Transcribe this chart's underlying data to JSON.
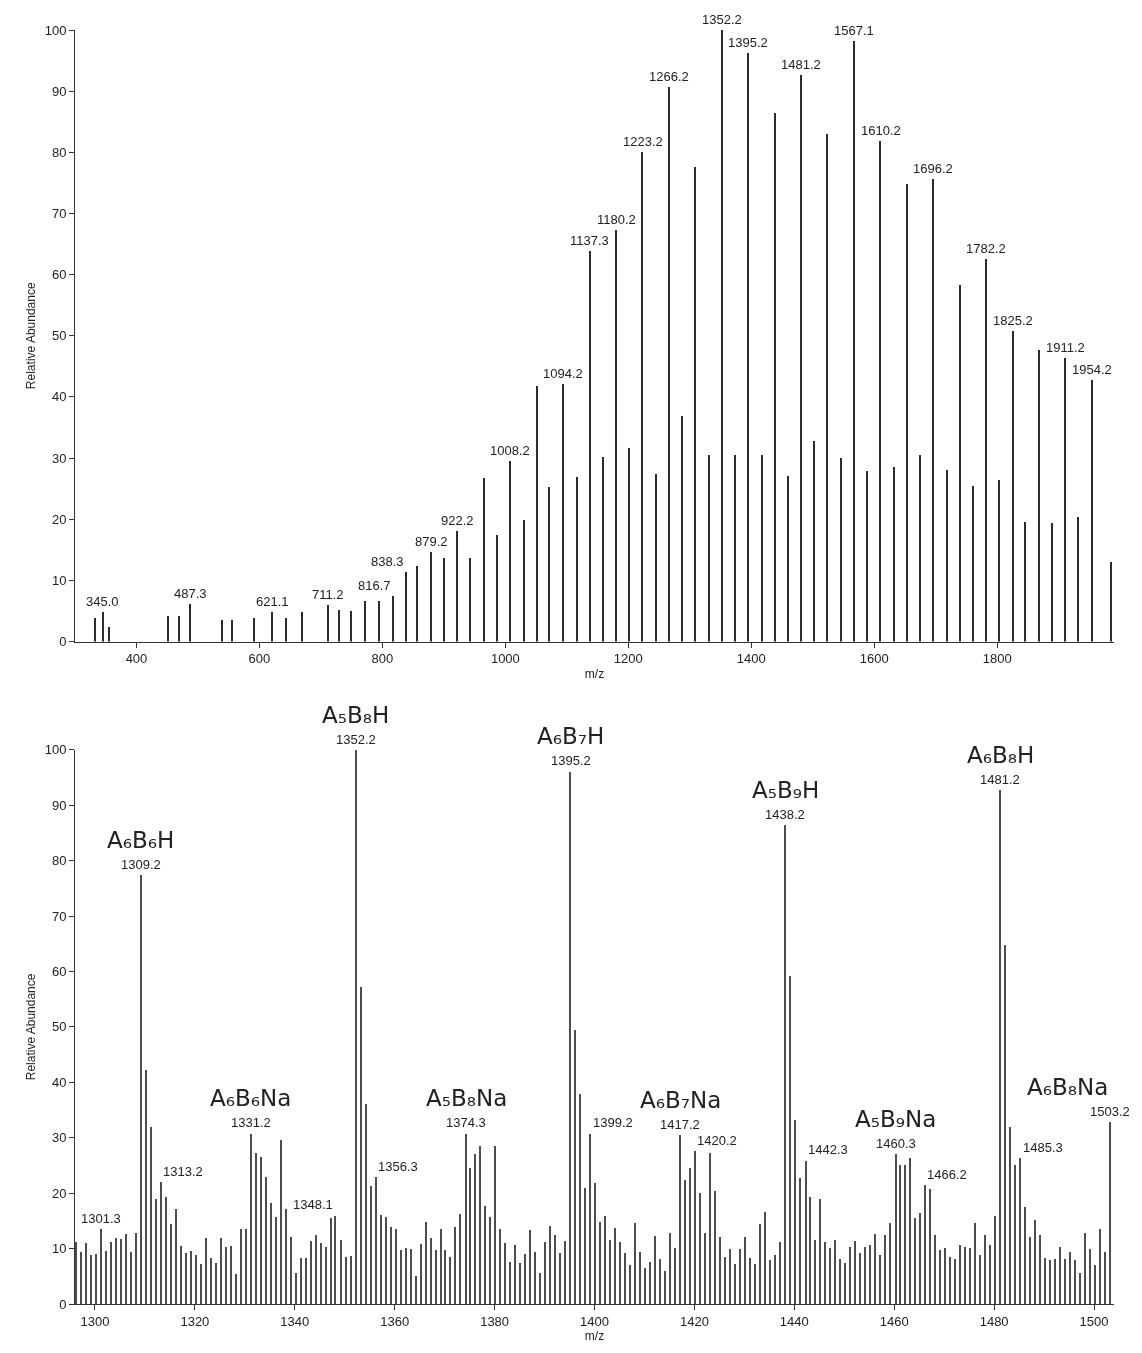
{
  "chart_data": [
    {
      "type": "bar",
      "xlabel": "m/z",
      "ylabel": "Relative Abundance",
      "color": "#2b2b2b",
      "xlim": [
        300,
        1990
      ],
      "ylim": [
        0,
        100
      ],
      "xticks": [
        400,
        600,
        800,
        1000,
        1200,
        1400,
        1600,
        1800
      ],
      "yticks": [
        0,
        10,
        20,
        30,
        40,
        50,
        60,
        70,
        80,
        90,
        100
      ],
      "x": [
        332,
        345.0,
        355,
        452,
        470,
        487.3,
        540,
        555,
        592,
        621.1,
        643,
        669,
        711.2,
        729,
        749,
        772,
        794,
        816.7,
        838.3,
        857,
        879.2,
        901,
        922.2,
        943,
        965,
        986,
        1008.2,
        1030,
        1051.2,
        1071,
        1094.2,
        1116,
        1137.3,
        1159,
        1180.2,
        1202,
        1223.2,
        1245,
        1266.2,
        1288,
        1309.2,
        1331,
        1352.2,
        1374,
        1395.2,
        1417,
        1438.2,
        1460,
        1481.2,
        1502,
        1524.2,
        1546,
        1567.1,
        1589,
        1610.2,
        1632,
        1653.2,
        1674,
        1696.2,
        1719,
        1739.2,
        1761,
        1782.2,
        1803,
        1825.2,
        1846,
        1868.2,
        1889,
        1911.2,
        1932,
        1954.2,
        1985
      ],
      "values": [
        3.8,
        4.8,
        2.3,
        4.2,
        4.2,
        6.1,
        3.6,
        3.5,
        3.9,
        4.8,
        3.8,
        4.9,
        5.9,
        5.2,
        5,
        6.7,
        6.7,
        7.5,
        11.4,
        12.4,
        14.6,
        13.6,
        18.1,
        13.6,
        26.8,
        17.5,
        29.5,
        19.9,
        41.8,
        25.2,
        42.1,
        26.9,
        63.8,
        30.2,
        67.3,
        31.6,
        80,
        27.4,
        90.6,
        36.9,
        77.6,
        30.5,
        100,
        30.5,
        96.2,
        30.5,
        86.5,
        27.1,
        92.6,
        32.8,
        83,
        30,
        98.2,
        27.9,
        81.9,
        28.6,
        74.8,
        30.5,
        75.7,
        28.1,
        58.3,
        25.4,
        62.6,
        26.4,
        50.7,
        19.6,
        47.6,
        19.4,
        46.3,
        20.3,
        42.8,
        13
      ],
      "annotations": [
        {
          "text": "345.0",
          "x": 345.0,
          "y": 4.8
        },
        {
          "text": "487.3",
          "x": 487.3,
          "y": 6.1
        },
        {
          "text": "621.1",
          "x": 621.1,
          "y": 4.8
        },
        {
          "text": "711.2",
          "x": 711.2,
          "y": 5.9
        },
        {
          "text": "816.7",
          "x": 816.7,
          "y": 7.5
        },
        {
          "text": "838.3",
          "x": 838.3,
          "y": 11.4
        },
        {
          "text": "879.2",
          "x": 879.2,
          "y": 14.6
        },
        {
          "text": "922.2",
          "x": 922.2,
          "y": 18.1
        },
        {
          "text": "1008.2",
          "x": 1008.2,
          "y": 29.5
        },
        {
          "text": "1094.2",
          "x": 1094.2,
          "y": 42.1
        },
        {
          "text": "1137.3",
          "x": 1137.3,
          "y": 63.8
        },
        {
          "text": "1180.2",
          "x": 1180.2,
          "y": 67.3
        },
        {
          "text": "1223.2",
          "x": 1223.2,
          "y": 80
        },
        {
          "text": "1266.2",
          "x": 1266.2,
          "y": 90.6
        },
        {
          "text": "1352.2",
          "x": 1352.2,
          "y": 100
        },
        {
          "text": "1395.2",
          "x": 1395.2,
          "y": 96.2
        },
        {
          "text": "1481.2",
          "x": 1481.2,
          "y": 92.6
        },
        {
          "text": "1567.1",
          "x": 1567.1,
          "y": 98.2
        },
        {
          "text": "1610.2",
          "x": 1610.2,
          "y": 81.9
        },
        {
          "text": "1696.2",
          "x": 1696.2,
          "y": 75.7
        },
        {
          "text": "1782.2",
          "x": 1782.2,
          "y": 62.6
        },
        {
          "text": "1825.2",
          "x": 1825.2,
          "y": 50.7
        },
        {
          "text": "1911.2",
          "x": 1911.2,
          "y": 46.3
        },
        {
          "text": "1954.2",
          "x": 1954.2,
          "y": 42.8
        }
      ]
    },
    {
      "type": "bar",
      "xlabel": "m/z",
      "ylabel": "Relative Abundance",
      "color": "#4d4d4d",
      "xlim": [
        1296,
        1504
      ],
      "ylim": [
        0,
        100
      ],
      "xticks": [
        1300,
        1320,
        1340,
        1360,
        1380,
        1400,
        1420,
        1440,
        1460,
        1480,
        1500
      ],
      "yticks": [
        0,
        10,
        20,
        30,
        40,
        50,
        60,
        70,
        80,
        90,
        100
      ],
      "x": [
        1296.2,
        1297.2,
        1298.2,
        1299.2,
        1300.2,
        1301.3,
        1302.2,
        1303.2,
        1304.2,
        1305.2,
        1306.2,
        1307.2,
        1308.2,
        1309.2,
        1310.2,
        1311.2,
        1312.2,
        1313.2,
        1314.2,
        1315.2,
        1316.2,
        1317.2,
        1318.2,
        1319.2,
        1320.2,
        1321.2,
        1322.2,
        1323.2,
        1324.2,
        1325.2,
        1326.2,
        1327.2,
        1328.2,
        1329.2,
        1330.2,
        1331.2,
        1332.2,
        1333.2,
        1334.2,
        1335.2,
        1336.2,
        1337.2,
        1338.2,
        1339.2,
        1340.2,
        1341.2,
        1342.2,
        1343.2,
        1344.2,
        1345.2,
        1346.2,
        1347.2,
        1348.1,
        1349.2,
        1350.2,
        1351.2,
        1352.2,
        1353.2,
        1354.2,
        1355.2,
        1356.3,
        1357.2,
        1358.2,
        1359.2,
        1360.2,
        1361.2,
        1362.2,
        1363.2,
        1364.2,
        1365.2,
        1366.2,
        1367.2,
        1368.2,
        1369.2,
        1370.2,
        1371.2,
        1372.2,
        1373.2,
        1374.3,
        1375.2,
        1376.2,
        1377.2,
        1378.2,
        1379.2,
        1380.2,
        1381.2,
        1382.2,
        1383.2,
        1384.2,
        1385.2,
        1386.2,
        1387.2,
        1388.2,
        1389.2,
        1390.2,
        1391.2,
        1392.2,
        1393.2,
        1394.2,
        1395.2,
        1396.2,
        1397.2,
        1398.2,
        1399.2,
        1400.2,
        1401.2,
        1402.2,
        1403.2,
        1404.2,
        1405.2,
        1406.2,
        1407.2,
        1408.2,
        1409.2,
        1410.2,
        1411.2,
        1412.2,
        1413.2,
        1414.2,
        1415.2,
        1416.2,
        1417.2,
        1418.2,
        1419.2,
        1420.2,
        1421.2,
        1422.2,
        1423.2,
        1424.2,
        1425.2,
        1426.2,
        1427.2,
        1428.2,
        1429.2,
        1430.2,
        1431.2,
        1432.2,
        1433.2,
        1434.2,
        1435.2,
        1436.2,
        1437.2,
        1438.2,
        1439.2,
        1440.2,
        1441.2,
        1442.3,
        1443.2,
        1444.2,
        1445.2,
        1446.2,
        1447.2,
        1448.2,
        1449.2,
        1450.2,
        1451.2,
        1452.2,
        1453.2,
        1454.2,
        1455.2,
        1456.2,
        1457.2,
        1458.2,
        1459.2,
        1460.3,
        1461.2,
        1462.2,
        1463.2,
        1464.2,
        1465.2,
        1466.2,
        1467.2,
        1468.2,
        1469.2,
        1470.2,
        1471.2,
        1472.2,
        1473.2,
        1474.2,
        1475.2,
        1476.2,
        1477.2,
        1478.2,
        1479.2,
        1480.2,
        1481.2,
        1482.2,
        1483.2,
        1484.2,
        1485.3,
        1486.2,
        1487.2,
        1488.2,
        1489.2,
        1490.2,
        1491.2,
        1492.2,
        1493.2,
        1494.2,
        1495.2,
        1496.2,
        1497.2,
        1498.2,
        1499.2,
        1500.2,
        1501.2,
        1502.2,
        1503.2
      ],
      "values": [
        11.3,
        9.5,
        11,
        8.8,
        9.1,
        13.5,
        9.6,
        11.3,
        12,
        11.8,
        12.6,
        9.5,
        12.8,
        77.5,
        42.3,
        32,
        18.9,
        22,
        19.4,
        14.5,
        17.1,
        10.5,
        9.2,
        9.6,
        8.9,
        7.2,
        11.9,
        8.4,
        7.5,
        11.9,
        10.4,
        10.5,
        5.5,
        13.5,
        13.6,
        30.8,
        27.2,
        26.5,
        22.9,
        18.2,
        15.8,
        29.6,
        17.2,
        12.2,
        5.6,
        8.3,
        8.3,
        11.4,
        12.4,
        11,
        10.4,
        15.6,
        16,
        11.6,
        8.6,
        8.7,
        100,
        57.2,
        36.1,
        21.4,
        22.9,
        16.1,
        15.7,
        14,
        13.5,
        9.7,
        10.1,
        9.9,
        5.1,
        10.8,
        14.8,
        11.9,
        9.7,
        13.6,
        9.8,
        8.6,
        13.9,
        16.3,
        30.8,
        24.6,
        27.1,
        28.6,
        17.7,
        15.7,
        28.6,
        13.6,
        11,
        7.6,
        10.7,
        7.5,
        9.1,
        13.3,
        9.4,
        5.7,
        11.3,
        14.2,
        12.5,
        9.2,
        11.4,
        96.1,
        49.4,
        37.9,
        20.9,
        30.8,
        21.9,
        14.8,
        16,
        11.5,
        13.8,
        11.2,
        9.2,
        7.1,
        14.7,
        9.4,
        6.5,
        7.6,
        12.3,
        8.2,
        5.9,
        12.9,
        10.1,
        30.5,
        22.4,
        24.5,
        27.6,
        20.1,
        12.8,
        27.2,
        20.4,
        12.1,
        8.5,
        9.9,
        7.3,
        9.9,
        12.2,
        8.4,
        7.3,
        14.5,
        16.7,
        7.9,
        8.9,
        11.3,
        86.5,
        59.2,
        33.3,
        22.7,
        25.9,
        19.3,
        11.6,
        18.9,
        11.3,
        10.1,
        11.5,
        8.2,
        7.4,
        10.3,
        11.4,
        9.2,
        10.4,
        10.7,
        12.7,
        8.9,
        12.5,
        14.7,
        27.1,
        25.1,
        25.1,
        26.3,
        15.6,
        16.5,
        21.5,
        20.7,
        12.4,
        9.7,
        10.1,
        8.6,
        8.2,
        10.7,
        10.3,
        10.1,
        14.7,
        8.8,
        12.4,
        10.7,
        15.9,
        92.8,
        64.9,
        32,
        25.2,
        26.3,
        17.5,
        12.1,
        15.2,
        12.4,
        8.4,
        7.9,
        8.2,
        10.4,
        8.2,
        9.4,
        8,
        5.6,
        12.8,
        9.9,
        7,
        13.5,
        9.4,
        32.8
      ],
      "annotations": [
        {
          "text": "1301.3",
          "x": 1301.3,
          "y": 13.5
        },
        {
          "text": "1309.2",
          "x": 1309.2,
          "y": 77.5
        },
        {
          "text": "1313.2",
          "x": 1313.2,
          "y": 22
        },
        {
          "text": "1331.2",
          "x": 1331.2,
          "y": 30.8
        },
        {
          "text": "1348.1",
          "x": 1348.1,
          "y": 16
        },
        {
          "text": "1352.2",
          "x": 1352.2,
          "y": 100
        },
        {
          "text": "1356.3",
          "x": 1356.3,
          "y": 22.9
        },
        {
          "text": "1374.3",
          "x": 1374.3,
          "y": 30.8
        },
        {
          "text": "1395.2",
          "x": 1395.2,
          "y": 96.1
        },
        {
          "text": "1399.2",
          "x": 1399.2,
          "y": 30.8
        },
        {
          "text": "1417.2",
          "x": 1417.2,
          "y": 30.5
        },
        {
          "text": "1420.2",
          "x": 1420.2,
          "y": 27.6
        },
        {
          "text": "1438.2",
          "x": 1438.2,
          "y": 86.5
        },
        {
          "text": "1442.3",
          "x": 1442.3,
          "y": 25.9
        },
        {
          "text": "1460.3",
          "x": 1460.3,
          "y": 27.1
        },
        {
          "text": "1466.2",
          "x": 1466.2,
          "y": 21.5
        },
        {
          "text": "1481.2",
          "x": 1481.2,
          "y": 92.8
        },
        {
          "text": "1485.3",
          "x": 1485.3,
          "y": 26.3
        },
        {
          "text": "1503.2",
          "x": 1503.2,
          "y": 32.8
        },
        {
          "text": "A₆B₆H",
          "x": 1309.2,
          "y": 77.5
        },
        {
          "text": "A₅B₈H",
          "x": 1352.2,
          "y": 100
        },
        {
          "text": "A₆B₇H",
          "x": 1395.2,
          "y": 96.1
        },
        {
          "text": "A₅B₉H",
          "x": 1438.2,
          "y": 86.5
        },
        {
          "text": "A₆B₈H",
          "x": 1481.2,
          "y": 92.8
        },
        {
          "text": "A₆B₆Na",
          "x": 1331.2,
          "y": 30.8
        },
        {
          "text": "A₅B₈Na",
          "x": 1374.3,
          "y": 30.8
        },
        {
          "text": "A₆B₇Na",
          "x": 1417.2,
          "y": 30.5
        },
        {
          "text": "A₅B₉Na",
          "x": 1460.3,
          "y": 27.1
        },
        {
          "text": "A₆B₈Na",
          "x": 1503.2,
          "y": 32.8
        }
      ]
    }
  ]
}
